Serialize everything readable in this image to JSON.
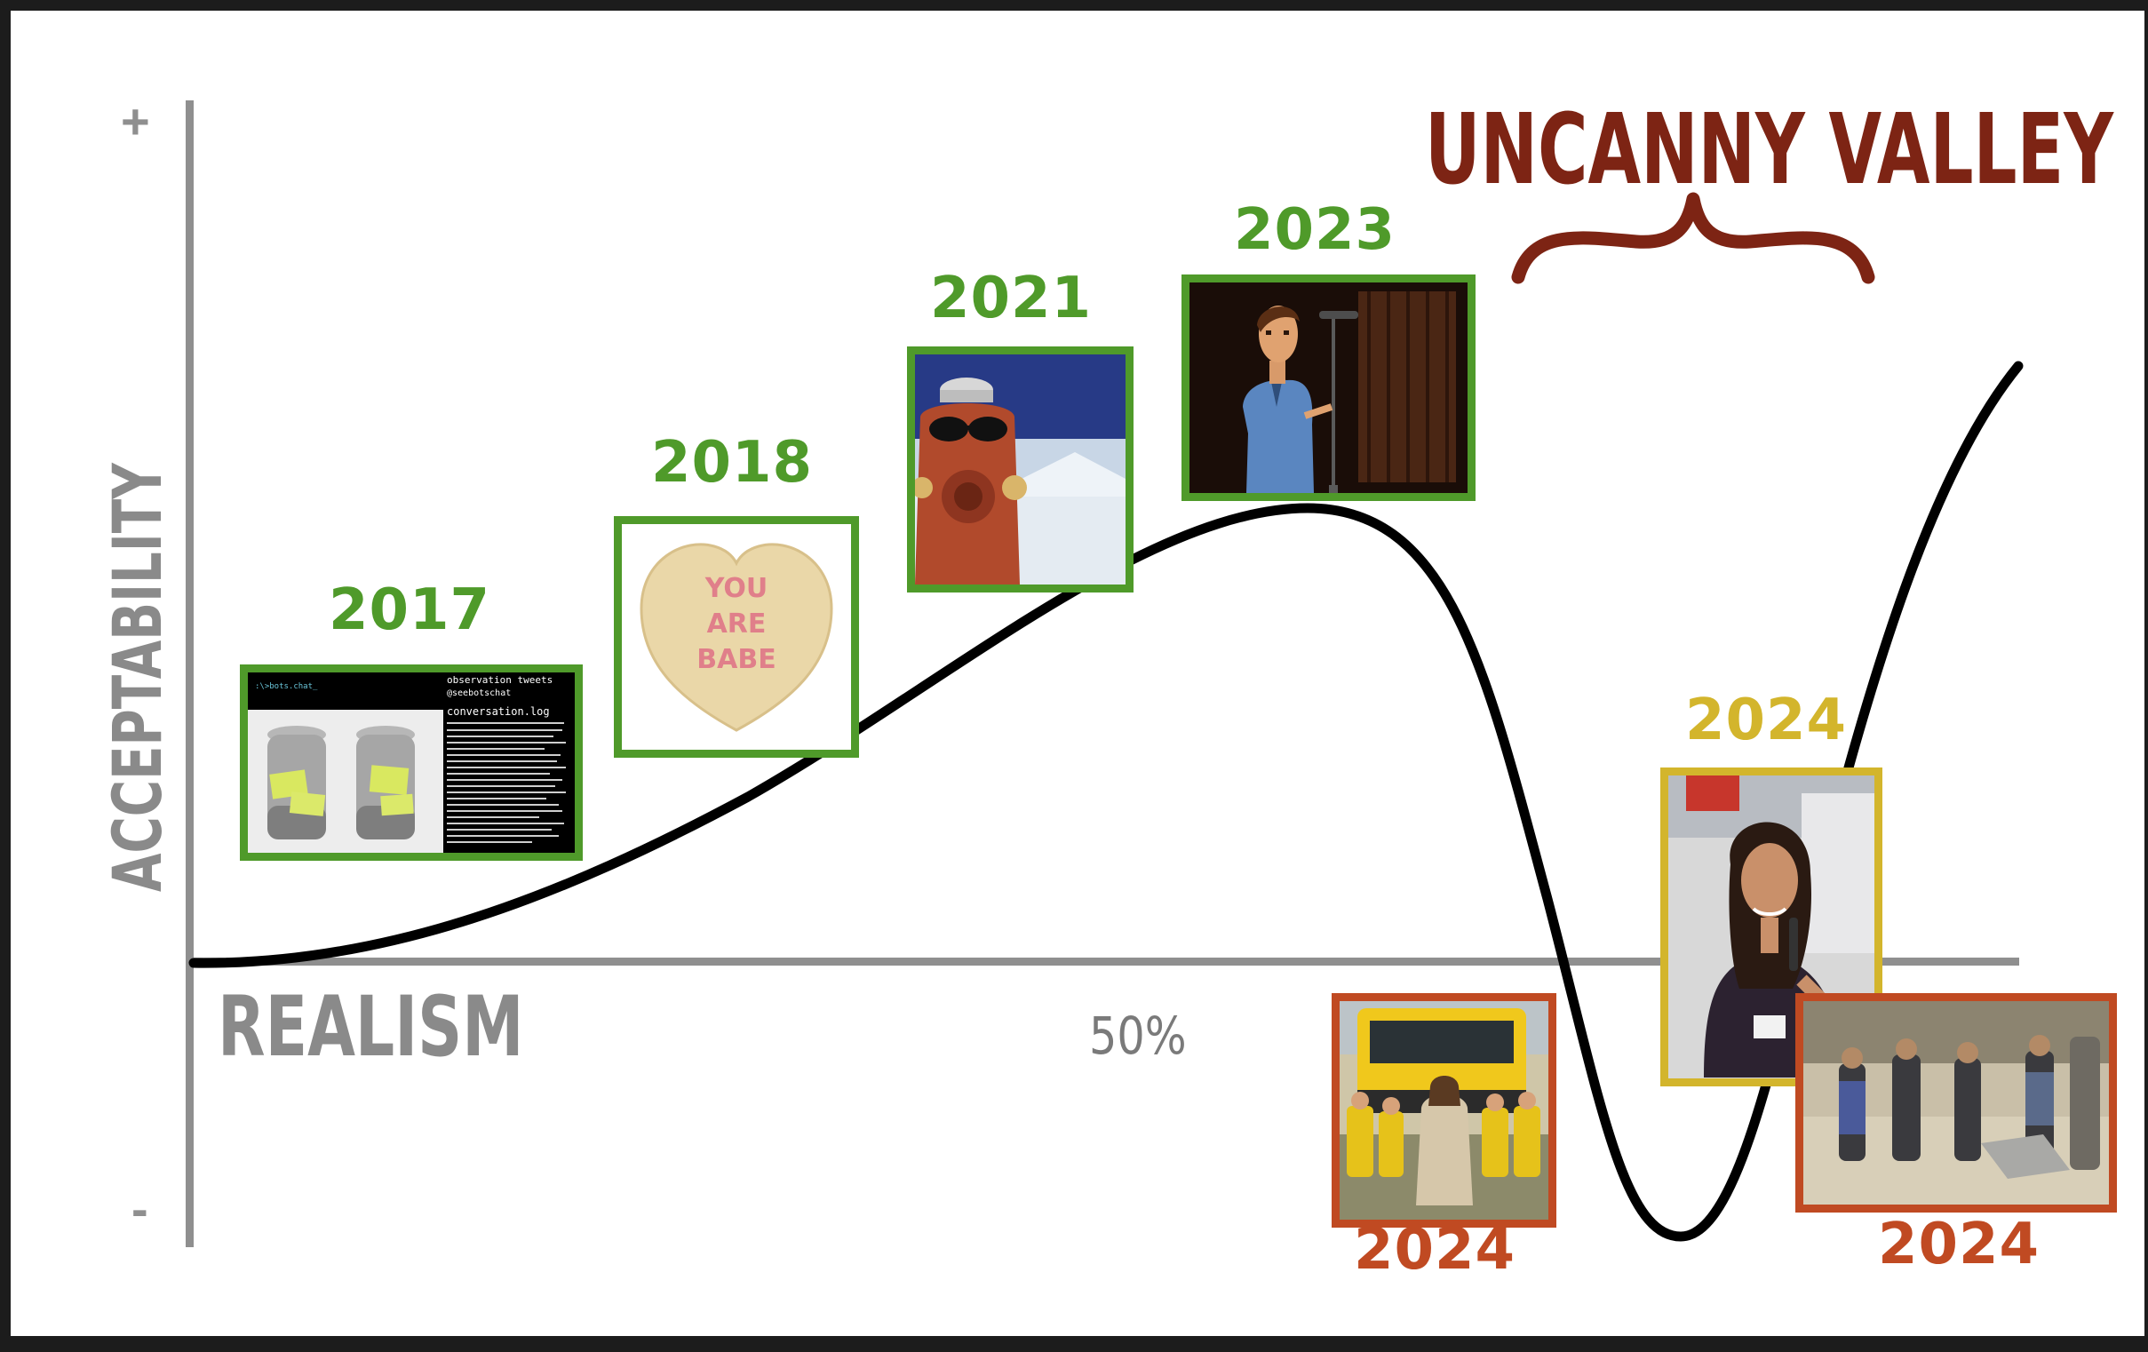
{
  "title": "UNCANNY VALLEY",
  "y_axis": {
    "label": "ACCEPTABILITY",
    "plus": "+",
    "minus": "-"
  },
  "x_axis": {
    "label": "REALISM",
    "mid_tick": "50%"
  },
  "colors": {
    "acceptable": "#4f9a2a",
    "borderline": "#d3b52c",
    "uncanny": "#c04a22",
    "title": "#7d2414",
    "axis": "#8f8f8f",
    "curve": "#000000"
  },
  "milestones": [
    {
      "year": "2017",
      "status": "acceptable",
      "image": "chatbot-screenshot",
      "terminal_prompt": ":\\>bots.chat_",
      "panel_title": "observation tweets",
      "panel_handle": "@seebotschat",
      "panel_file": "conversation.log"
    },
    {
      "year": "2018",
      "status": "acceptable",
      "image": "candy-heart",
      "heart_text": [
        "YOU",
        "ARE",
        "BABE"
      ]
    },
    {
      "year": "2021",
      "status": "acceptable",
      "image": "fire-hydrant-sunglasses"
    },
    {
      "year": "2023",
      "status": "acceptable",
      "image": "animated-man-microphone"
    },
    {
      "year": "2024",
      "status": "uncanny",
      "image": "jesus-bus-children"
    },
    {
      "year": "2024",
      "status": "borderline",
      "image": "woman-speaking-microphone"
    },
    {
      "year": "2024",
      "status": "uncanny",
      "image": "desert-excavation"
    }
  ]
}
